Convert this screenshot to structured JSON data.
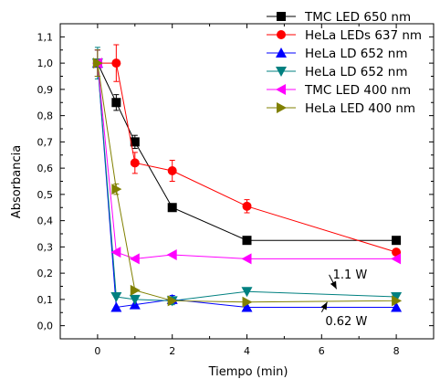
{
  "chart_data": {
    "type": "line",
    "title": "",
    "xlabel": "Tiempo (min)",
    "ylabel": "Absorbancia",
    "xlim": [
      -1,
      9
    ],
    "ylim": [
      -0.05,
      1.15
    ],
    "x_ticks": [
      0,
      2,
      4,
      6,
      8
    ],
    "x_tick_labels": [
      "0",
      "2",
      "4",
      "6",
      "8"
    ],
    "y_ticks": [
      0.0,
      0.1,
      0.2,
      0.3,
      0.4,
      0.5,
      0.6,
      0.7,
      0.8,
      0.9,
      1.0,
      1.1
    ],
    "y_tick_labels": [
      "0,0",
      "0,1",
      "0,2",
      "0,3",
      "0,4",
      "0,5",
      "0,6",
      "0,7",
      "0,8",
      "0,9",
      "1,0",
      "1,1"
    ],
    "grid": false,
    "legend_position": "top-right",
    "series": [
      {
        "name": "TMC LED 650 nm",
        "color": "#000000",
        "marker": "square",
        "x": [
          0,
          0.5,
          1,
          2,
          4,
          8
        ],
        "y": [
          1.0,
          0.85,
          0.7,
          0.45,
          0.325,
          0.325
        ],
        "err": [
          0.05,
          0.03,
          0.025,
          0,
          0,
          0
        ]
      },
      {
        "name": "HeLa LEDs 637 nm",
        "color": "#ff0000",
        "marker": "circle",
        "x": [
          0,
          0.5,
          1,
          2,
          4,
          8
        ],
        "y": [
          1.0,
          1.0,
          0.62,
          0.59,
          0.455,
          0.28
        ],
        "err": [
          0.05,
          0.07,
          0.04,
          0.04,
          0.025,
          0
        ]
      },
      {
        "name": "HeLa LD 652 nm",
        "color": "#0000ff",
        "marker": "triangle-up",
        "x": [
          0,
          0.5,
          1,
          2,
          4,
          8
        ],
        "y": [
          1.0,
          0.07,
          0.08,
          0.1,
          0.07,
          0.07
        ],
        "err": [
          0.05,
          0,
          0,
          0.015,
          0,
          0
        ]
      },
      {
        "name": "HeLa LD 652 nm",
        "color": "#008080",
        "marker": "triangle-down",
        "x": [
          0,
          0.5,
          1,
          2,
          4,
          8
        ],
        "y": [
          1.0,
          0.11,
          0.1,
          0.095,
          0.13,
          0.11
        ],
        "err": [
          0.06,
          0,
          0,
          0.015,
          0,
          0
        ]
      },
      {
        "name": "TMC LED 400 nm",
        "color": "#ff00ff",
        "marker": "triangle-left",
        "x": [
          0,
          0.5,
          1,
          2,
          4,
          8
        ],
        "y": [
          1.0,
          0.28,
          0.255,
          0.27,
          0.255,
          0.255
        ],
        "err": [
          0.05,
          0,
          0,
          0,
          0,
          0
        ]
      },
      {
        "name": "HeLa LED 400 nm",
        "color": "#808000",
        "marker": "triangle-right",
        "x": [
          0,
          0.5,
          1,
          2,
          4,
          8
        ],
        "y": [
          1.0,
          0.52,
          0.135,
          0.095,
          0.09,
          0.095
        ],
        "err": [
          0.05,
          0.02,
          0,
          0,
          0,
          0
        ]
      }
    ],
    "annotations": [
      {
        "text": "1.1 W",
        "x": 6.3,
        "y": 0.18,
        "arrow_to": [
          6.4,
          0.14
        ]
      },
      {
        "text": "0.62 W",
        "x": 6.1,
        "y": 0.003,
        "arrow_to": [
          6.15,
          0.09
        ]
      }
    ]
  }
}
